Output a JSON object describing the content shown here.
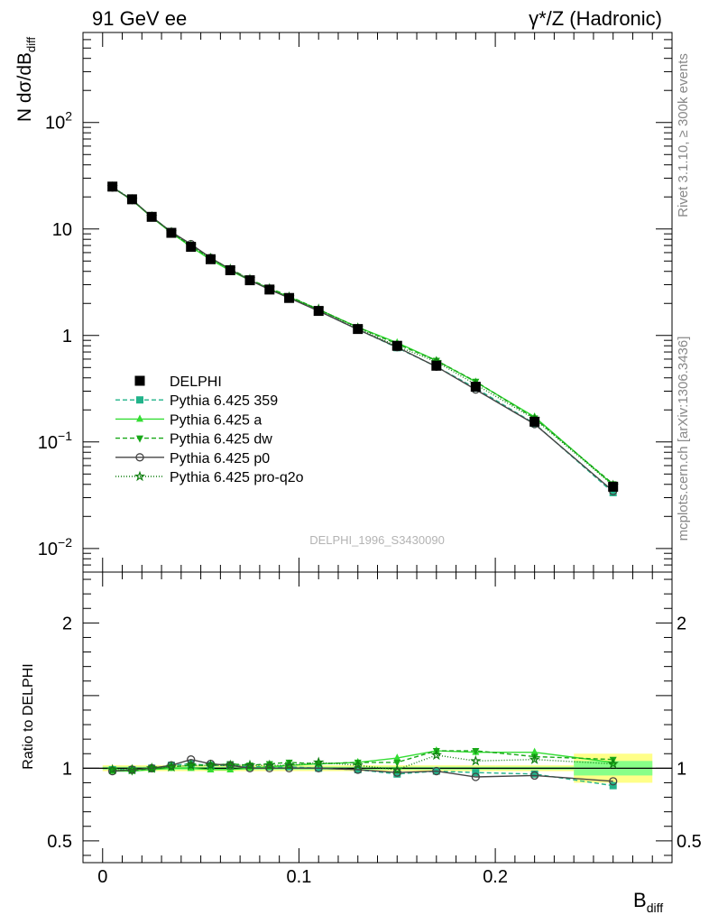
{
  "header": {
    "left": "91 GeV ee",
    "right": "γ*/Z (Hadronic)"
  },
  "side": {
    "rivet": "Rivet 3.1.10, ≥ 300k events",
    "site": "mcplots.cern.ch [arXiv:1306.3436]"
  },
  "watermark": "DELPHI_1996_S3430090",
  "axes": {
    "main_ylabel": "N dσ/dB",
    "main_ylabel_sub": "diff",
    "ratio_ylabel": "Ratio to DELPHI",
    "xlabel": "B",
    "xlabel_sub": "diff"
  },
  "colors": {
    "data": "#000000",
    "band_outer": "#ffff88",
    "band_inner": "#88ff88",
    "p359": "#22b38a",
    "pa": "#33dd33",
    "pdw": "#18a818",
    "pp0": "#444444",
    "pq2o": "#0f7f0f"
  },
  "chart_data": {
    "type": "line",
    "x_range": [
      -0.01,
      0.29
    ],
    "main": {
      "yscale": "log",
      "ylim": [
        0.006,
        700
      ],
      "yticks": [
        {
          "v": 0.01,
          "b": "10",
          "e": "−2"
        },
        {
          "v": 0.1,
          "b": "10",
          "e": "−1"
        },
        {
          "v": 1,
          "b": "1",
          "e": ""
        },
        {
          "v": 10,
          "b": "10",
          "e": ""
        },
        {
          "v": 100,
          "b": "10",
          "e": "2"
        }
      ]
    },
    "ratio": {
      "yscale": "linear",
      "ylim": [
        0.35,
        2.35
      ],
      "yticks": [
        {
          "v": 0.5,
          "label": "0.5"
        },
        {
          "v": 1,
          "label": "1"
        },
        {
          "v": 2,
          "label": "2"
        }
      ]
    },
    "xticks": [
      {
        "v": 0,
        "label": "0"
      },
      {
        "v": 0.1,
        "label": "0.1"
      },
      {
        "v": 0.2,
        "label": "0.2"
      }
    ],
    "x": [
      0.005,
      0.015,
      0.025,
      0.035,
      0.045,
      0.055,
      0.065,
      0.075,
      0.085,
      0.095,
      0.11,
      0.13,
      0.15,
      0.17,
      0.19,
      0.22,
      0.26
    ],
    "x_edges": [
      0.0,
      0.01,
      0.02,
      0.03,
      0.04,
      0.05,
      0.06,
      0.07,
      0.08,
      0.09,
      0.1,
      0.12,
      0.14,
      0.16,
      0.18,
      0.2,
      0.24,
      0.28
    ],
    "data": {
      "name": "DELPHI",
      "values": [
        25,
        19,
        13,
        9.2,
        6.8,
        5.2,
        4.1,
        3.3,
        2.7,
        2.25,
        1.7,
        1.15,
        0.8,
        0.52,
        0.33,
        0.155,
        0.038
      ],
      "rel_unc_stat": [
        0.01,
        0.01,
        0.01,
        0.01,
        0.01,
        0.01,
        0.01,
        0.01,
        0.01,
        0.01,
        0.01,
        0.01,
        0.01,
        0.01,
        0.01,
        0.01,
        0.05
      ],
      "rel_unc_total": [
        0.02,
        0.02,
        0.02,
        0.02,
        0.02,
        0.02,
        0.02,
        0.02,
        0.02,
        0.02,
        0.02,
        0.02,
        0.02,
        0.02,
        0.02,
        0.02,
        0.1
      ]
    },
    "series": [
      {
        "name": "Pythia 6.425 359",
        "color_key": "p359",
        "dash": "5,3",
        "marker": "square",
        "ratio": [
          0.99,
          0.99,
          1.0,
          1.02,
          1.03,
          1.02,
          1.02,
          1.01,
          1.01,
          1.01,
          1.0,
          0.99,
          0.96,
          0.98,
          0.97,
          0.96,
          0.88
        ]
      },
      {
        "name": "Pythia 6.425 a",
        "color_key": "pa",
        "dash": "",
        "marker": "triangle-up",
        "ratio": [
          0.98,
          0.98,
          0.99,
          1.0,
          1.0,
          0.99,
          0.99,
          1.0,
          1.01,
          1.02,
          1.03,
          1.04,
          1.07,
          1.12,
          1.11,
          1.11,
          1.04
        ]
      },
      {
        "name": "Pythia 6.425 dw",
        "color_key": "pdw",
        "dash": "5,3",
        "marker": "triangle-down",
        "ratio": [
          0.99,
          0.98,
          1.0,
          1.01,
          1.02,
          1.02,
          1.03,
          1.02,
          1.03,
          1.04,
          1.03,
          1.04,
          1.04,
          1.12,
          1.12,
          1.08,
          1.06
        ]
      },
      {
        "name": "Pythia 6.425 p0",
        "color_key": "pp0",
        "dash": "",
        "marker": "circle-open",
        "ratio": [
          0.98,
          0.99,
          1.0,
          1.02,
          1.06,
          1.03,
          1.02,
          1.0,
          1.0,
          1.0,
          1.0,
          0.99,
          0.97,
          0.98,
          0.94,
          0.95,
          0.91
        ]
      },
      {
        "name": "Pythia 6.425 pro-q2o",
        "color_key": "pq2o",
        "dash": "1,2",
        "marker": "star-open",
        "ratio": [
          0.99,
          0.99,
          1.0,
          1.01,
          1.02,
          1.02,
          1.02,
          1.02,
          1.02,
          1.02,
          1.04,
          1.02,
          0.99,
          1.09,
          1.05,
          1.06,
          1.03
        ]
      }
    ]
  }
}
